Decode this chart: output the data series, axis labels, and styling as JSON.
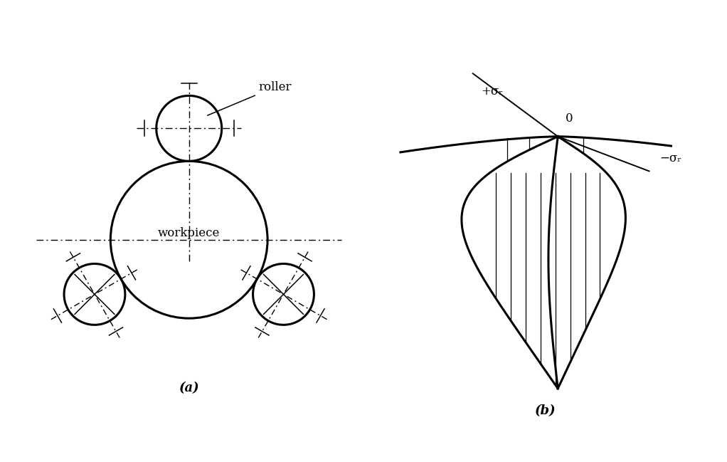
{
  "fig_width": 10.22,
  "fig_height": 6.49,
  "bg_color": "#ffffff",
  "line_color": "#000000",
  "label_a": "(a)",
  "label_b": "(b)",
  "workpiece_label": "workpiece",
  "roller_label": "roller",
  "sigma_plus": "+σᵣ",
  "sigma_minus": "−σᵣ",
  "sigma_zero": "0"
}
